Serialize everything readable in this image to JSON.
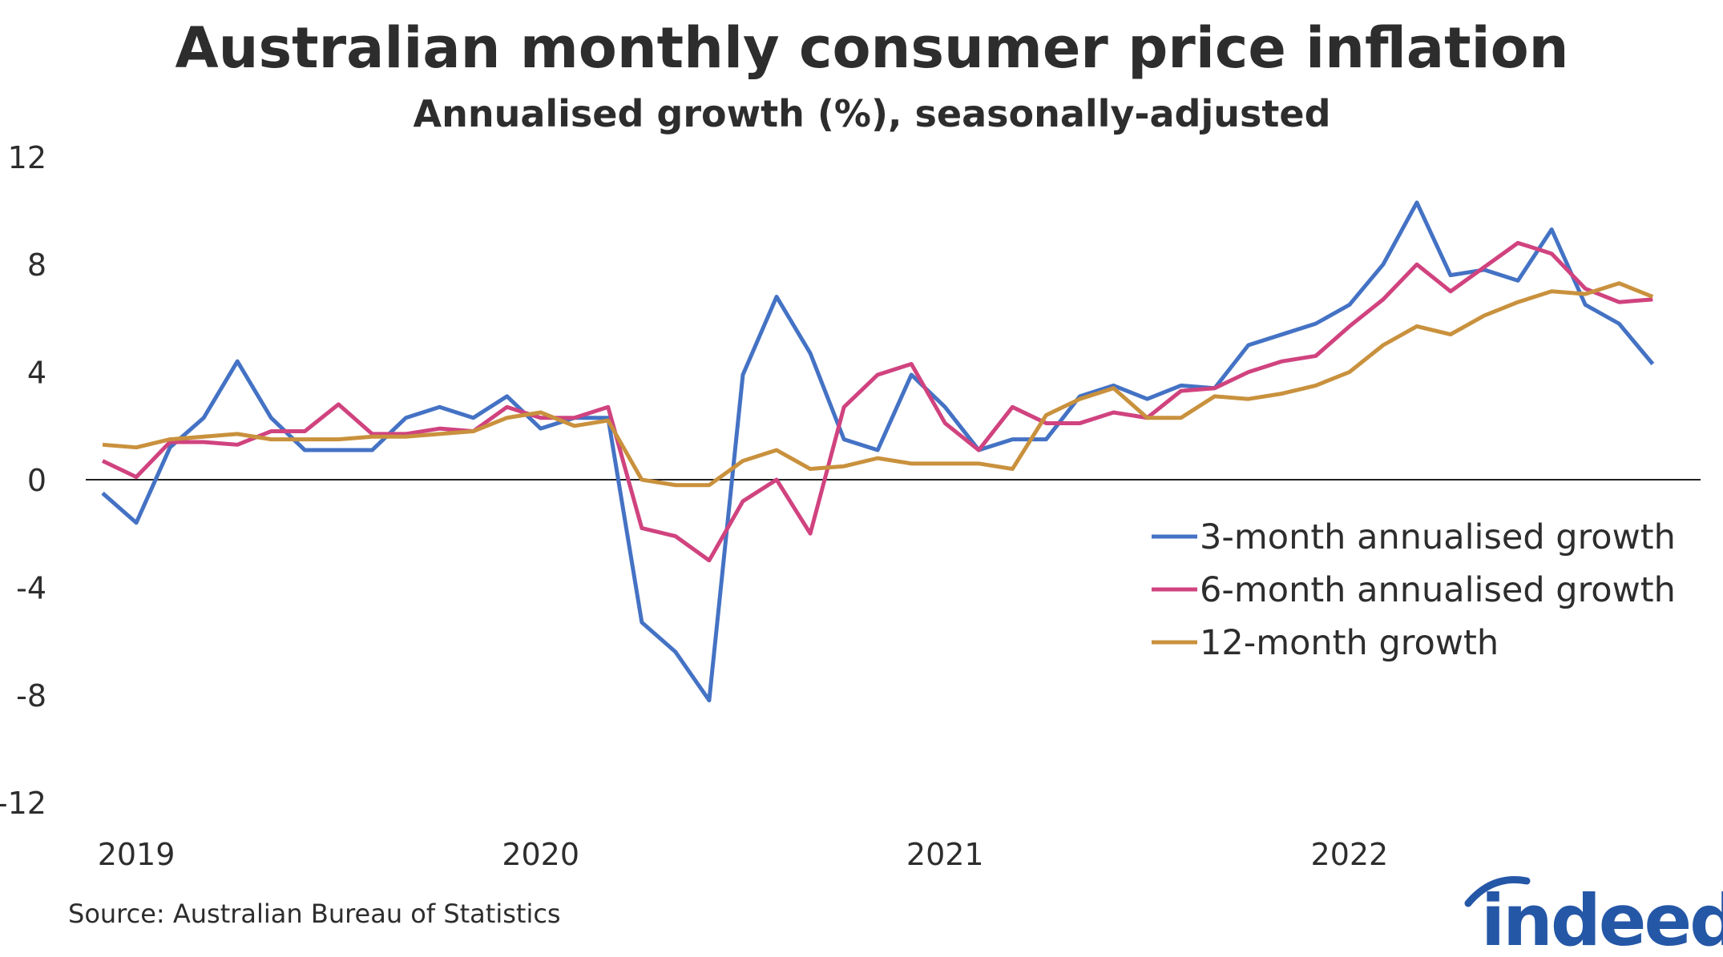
{
  "chart_data": {
    "type": "line",
    "title": "Australian monthly consumer price inflation",
    "subtitle": "Annualised growth (%), seasonally-adjusted",
    "source": "Source: Australian Bureau of Statistics",
    "logo": "indeed",
    "x_start": "2018-12",
    "x_end": "2022-10",
    "x_tick_labels": [
      "2019",
      "2020",
      "2021",
      "2022"
    ],
    "y_ticks": [
      12,
      8,
      4,
      0,
      -4,
      -8,
      -12
    ],
    "ylim": [
      -12,
      12
    ],
    "grid": false,
    "legend_placement": "right",
    "series": [
      {
        "name": "3-month annualised growth",
        "color": "#4472c4",
        "values": [
          -0.5,
          -1.6,
          1.2,
          2.3,
          4.4,
          2.3,
          1.1,
          1.1,
          1.1,
          2.3,
          2.7,
          2.3,
          3.1,
          1.9,
          2.3,
          2.3,
          -5.3,
          -6.4,
          -8.2,
          3.9,
          6.8,
          4.7,
          1.5,
          1.1,
          3.9,
          2.7,
          1.1,
          1.5,
          1.5,
          3.1,
          3.5,
          3.0,
          3.5,
          3.4,
          5.0,
          5.4,
          5.8,
          6.5,
          8.0,
          10.3,
          7.6,
          7.8,
          7.4,
          9.3,
          6.5,
          5.8,
          4.3
        ]
      },
      {
        "name": "6-month annualised growth",
        "color": "#d0437f",
        "values": [
          0.7,
          0.1,
          1.4,
          1.4,
          1.3,
          1.8,
          1.8,
          2.8,
          1.7,
          1.7,
          1.9,
          1.8,
          2.7,
          2.3,
          2.3,
          2.7,
          -1.8,
          -2.1,
          -3.0,
          -0.8,
          0.0,
          -2.0,
          2.7,
          3.9,
          4.3,
          2.1,
          1.1,
          2.7,
          2.1,
          2.1,
          2.5,
          2.3,
          3.3,
          3.4,
          4.0,
          4.4,
          4.6,
          5.7,
          6.7,
          8.0,
          7.0,
          7.9,
          8.8,
          8.4,
          7.1,
          6.6,
          6.7
        ]
      },
      {
        "name": "12-month growth",
        "color": "#c9913d",
        "values": [
          1.3,
          1.2,
          1.5,
          1.6,
          1.7,
          1.5,
          1.5,
          1.5,
          1.6,
          1.6,
          1.7,
          1.8,
          2.3,
          2.5,
          2.0,
          2.2,
          0.0,
          -0.2,
          -0.2,
          0.7,
          1.1,
          0.4,
          0.5,
          0.8,
          0.6,
          0.6,
          0.6,
          0.4,
          2.4,
          3.0,
          3.4,
          2.3,
          2.3,
          3.1,
          3.0,
          3.2,
          3.5,
          4.0,
          5.0,
          5.7,
          5.4,
          6.1,
          6.6,
          7.0,
          6.9,
          7.3,
          6.8
        ]
      }
    ]
  }
}
